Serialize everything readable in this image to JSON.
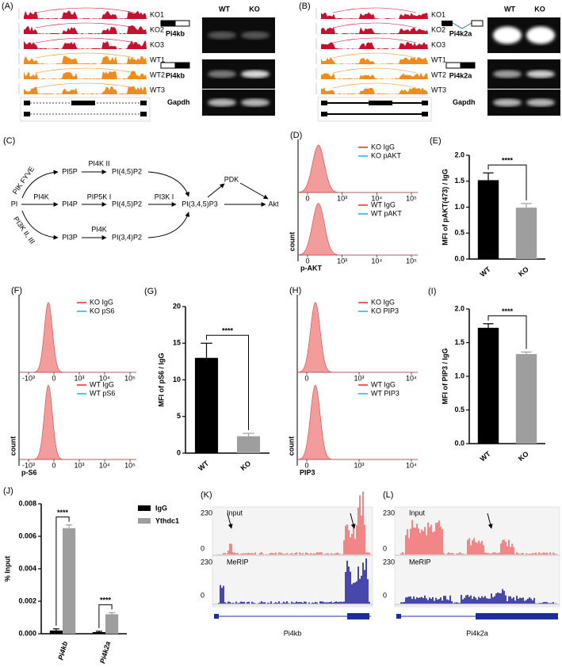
{
  "panels": {
    "a": {
      "label": "(A)",
      "tracks": [
        "KO1",
        "KO2",
        "KO3",
        "WT1",
        "WT2",
        "WT3"
      ],
      "gel_columns": [
        "WT",
        "KO"
      ],
      "gel_rows": [
        "Pi4kb",
        "Pi4kb",
        "Gapdh"
      ]
    },
    "b": {
      "label": "(B)",
      "tracks": [
        "KO1",
        "KO2",
        "KO3",
        "WT1",
        "WT2",
        "WT3"
      ],
      "gel_columns": [
        "WT",
        "KO"
      ],
      "gel_rows": [
        "Pi4k2a",
        "Pi4k2a",
        "Gapdh"
      ]
    },
    "c": {
      "label": "(C)",
      "nodes": [
        "PI",
        "PI5P",
        "PI(4,5)P2",
        "PI4P",
        "PI(4,5)P2",
        "PI3P",
        "PI(3,4)P2",
        "PI(3,4,5)P3",
        "PDK",
        "Akt"
      ],
      "enzymes": [
        "PIK FYVE",
        "PI4K II",
        "PI4K",
        "PIP5K I",
        "PI3K I",
        "PI3K II, III",
        "PI4K"
      ]
    },
    "d": {
      "label": "(D)",
      "legends": [
        [
          "KO IgG",
          "KO pAKT"
        ],
        [
          "WT IgG",
          "WT pAKT"
        ]
      ],
      "x_ticks": [
        "0",
        "10³",
        "10⁴",
        "10⁵"
      ],
      "y_label": "count",
      "x_label": "p-AKT"
    },
    "f": {
      "label": "(F)",
      "legends": [
        [
          "KO IgG",
          "KO pS6"
        ],
        [
          "WT IgG",
          "WT pS6"
        ]
      ],
      "x_ticks": [
        "-10³",
        "0",
        "10³",
        "10⁴",
        "10⁵"
      ],
      "y_label": "count",
      "x_label": "p-S6"
    },
    "h": {
      "label": "(H)",
      "legends": [
        [
          "KO IgG",
          "KO PIP3"
        ],
        [
          "WT IgG",
          "WT PIP3"
        ]
      ],
      "x_ticks": [
        "0",
        "10³",
        "10⁴"
      ],
      "y_label": "count",
      "x_label": "PIP3"
    },
    "k": {
      "label": "(K)",
      "track_labels": [
        "230",
        "Input",
        "0",
        "230",
        "MeRIP",
        "0"
      ],
      "gene": "Pi4kb"
    },
    "l": {
      "label": "(L)",
      "track_labels": [
        "230",
        "Input",
        "0",
        "230",
        "MeRIP",
        "0"
      ],
      "gene": "Pi4k2a"
    }
  },
  "chart_data": [
    {
      "type": "bar",
      "panel_label": "(E)",
      "y_label": "MFI of pAKT(473) / IgG",
      "categories": [
        "WT",
        "KO"
      ],
      "values": [
        1.52,
        0.99
      ],
      "errors": [
        0.14,
        0.08
      ],
      "colors": [
        "#000000",
        "#9e9e9e"
      ],
      "ylim": [
        0,
        2
      ],
      "yticks": [
        {
          "value": 0,
          "label": "0.0"
        },
        0.5,
        {
          "value": 1,
          "label": "1.0"
        },
        1.5,
        {
          "value": 2,
          "label": "2.0"
        }
      ],
      "significance": "****"
    },
    {
      "type": "bar",
      "panel_label": "(G)",
      "y_label": "MFI of pS6 / IgG",
      "categories": [
        "WT",
        "KO"
      ],
      "values": [
        13,
        2.3
      ],
      "errors": [
        2,
        0.4
      ],
      "colors": [
        "#000000",
        "#9e9e9e"
      ],
      "ylim": [
        0,
        20
      ],
      "yticks": [
        0,
        5,
        10,
        15,
        20
      ],
      "significance": "****"
    },
    {
      "type": "bar",
      "panel_label": "(I)",
      "y_label": "MFI of PIP3 / IgG",
      "categories": [
        "WT",
        "KO"
      ],
      "values": [
        1.72,
        1.33
      ],
      "errors": [
        0.06,
        0.03
      ],
      "colors": [
        "#000000",
        "#9e9e9e"
      ],
      "ylim": [
        0,
        2
      ],
      "yticks": [
        {
          "value": 0,
          "label": "0.0"
        },
        0.5,
        {
          "value": 1,
          "label": "1.0"
        },
        1.5,
        {
          "value": 2,
          "label": "2.0"
        }
      ],
      "significance": "****"
    },
    {
      "type": "grouped_bar",
      "panel_label": "(J)",
      "y_label": "% Input",
      "categories": [
        "Pi4kb",
        "Pi4k2a"
      ],
      "series": [
        {
          "name": "IgG",
          "color": "#000000",
          "values": [
            0.0002,
            0.0001
          ],
          "errors": [
            0.0001,
            5e-05
          ]
        },
        {
          "name": "Ythdc1",
          "color": "#9e9e9e",
          "values": [
            0.0065,
            0.0012
          ],
          "errors": [
            0.0002,
            0.0001
          ]
        }
      ],
      "ylim": [
        0,
        0.008
      ],
      "yticks": [
        {
          "value": 0,
          "label": "0.000"
        },
        {
          "value": 0.002,
          "label": "0.002"
        },
        {
          "value": 0.004,
          "label": "0.004"
        },
        {
          "value": 0.006,
          "label": "0.006"
        },
        {
          "value": 0.008,
          "label": "0.008"
        }
      ],
      "significance": [
        "****",
        "****"
      ]
    }
  ]
}
